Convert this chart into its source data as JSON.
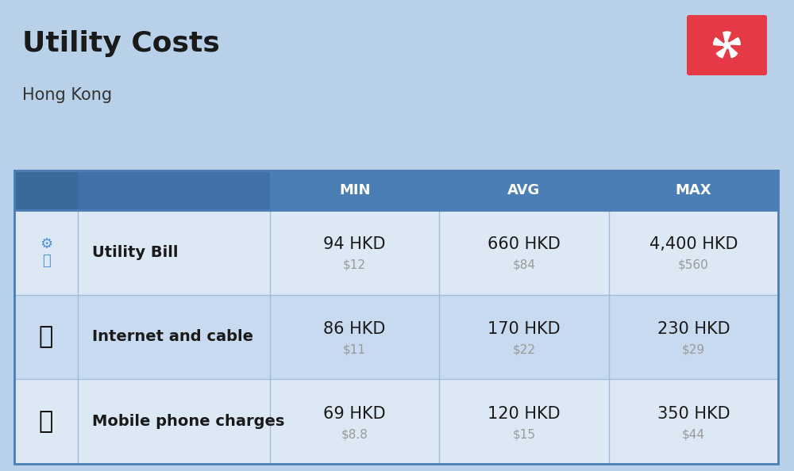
{
  "title": "Utility Costs",
  "subtitle": "Hong Kong",
  "background_color": "#b8d0e8",
  "header_bg_color": "#4a7eb5",
  "header_text_color": "#ffffff",
  "row_bg_color_light": "#dce9f5",
  "row_bg_color_dark": "#c8daf0",
  "icon_col_bg_header": "#3a6a9a",
  "label_col_bg_header": "#4270a8",
  "table_border_color": "#4a7eb5",
  "row_divider_color": "#a0bcd8",
  "columns": [
    "",
    "",
    "MIN",
    "AVG",
    "MAX"
  ],
  "rows": [
    {
      "label": "Utility Bill",
      "min_hkd": "94 HKD",
      "min_usd": "$12",
      "avg_hkd": "660 HKD",
      "avg_usd": "$84",
      "max_hkd": "4,400 HKD",
      "max_usd": "$560",
      "icon": "utility"
    },
    {
      "label": "Internet and cable",
      "min_hkd": "86 HKD",
      "min_usd": "$11",
      "avg_hkd": "170 HKD",
      "avg_usd": "$22",
      "max_hkd": "230 HKD",
      "max_usd": "$29",
      "icon": "internet"
    },
    {
      "label": "Mobile phone charges",
      "min_hkd": "69 HKD",
      "min_usd": "$8.8",
      "avg_hkd": "120 HKD",
      "avg_usd": "$15",
      "max_hkd": "350 HKD",
      "max_usd": "$44",
      "icon": "mobile"
    }
  ],
  "flag_bg_color": "#e63946",
  "title_fontsize": 26,
  "subtitle_fontsize": 15,
  "header_fontsize": 13,
  "cell_hkd_fontsize": 15,
  "cell_usd_fontsize": 11,
  "label_fontsize": 14,
  "usd_color": "#999999",
  "text_color": "#1a1a1a"
}
